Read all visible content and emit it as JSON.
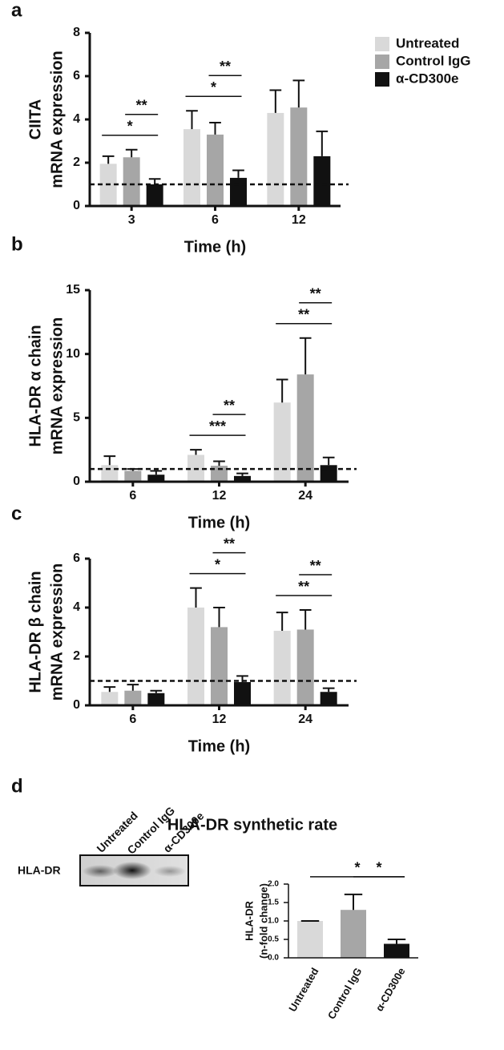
{
  "chart_data": [
    {
      "type": "bar",
      "panel": "a",
      "y_label": [
        "CIITA",
        "mRNA expression"
      ],
      "x_label": "Time (h)",
      "categories": [
        "3",
        "6",
        "12"
      ],
      "series": [
        {
          "name": "Untreated",
          "color": "#d9d9d9",
          "values": [
            1.95,
            3.55,
            4.3
          ],
          "errors": [
            0.35,
            0.85,
            1.05
          ]
        },
        {
          "name": "Control IgG",
          "color": "#a6a6a6",
          "values": [
            2.25,
            3.3,
            4.55
          ],
          "errors": [
            0.35,
            0.55,
            1.25
          ]
        },
        {
          "name": "α-CD300e",
          "color": "#111111",
          "values": [
            1.0,
            1.3,
            2.3
          ],
          "errors": [
            0.25,
            0.35,
            1.15
          ]
        }
      ],
      "ylim": [
        0,
        8
      ],
      "yticks": [
        0,
        2,
        4,
        6,
        8
      ],
      "reference_line": 1,
      "legend": "upper right",
      "annotations": [
        {
          "text": "*",
          "category": 0,
          "between": [
            0,
            2
          ]
        },
        {
          "text": "**",
          "category": 0,
          "between": [
            1,
            2
          ]
        },
        {
          "text": "*",
          "category": 1,
          "between": [
            0,
            2
          ]
        },
        {
          "text": "**",
          "category": 1,
          "between": [
            1,
            2
          ]
        }
      ]
    },
    {
      "type": "bar",
      "panel": "b",
      "y_label": [
        "HLA-DR α chain",
        "mRNA expression"
      ],
      "x_label": "Time (h)",
      "categories": [
        "6",
        "12",
        "24"
      ],
      "series": [
        {
          "name": "Untreated",
          "color": "#d9d9d9",
          "values": [
            1.3,
            2.1,
            6.2
          ],
          "errors": [
            0.7,
            0.4,
            1.8
          ]
        },
        {
          "name": "Control IgG",
          "color": "#a6a6a6",
          "values": [
            0.85,
            1.25,
            8.4
          ],
          "errors": [
            0.15,
            0.35,
            2.85
          ]
        },
        {
          "name": "α-CD300e",
          "color": "#111111",
          "values": [
            0.55,
            0.45,
            1.3
          ],
          "errors": [
            0.3,
            0.2,
            0.6
          ]
        }
      ],
      "ylim": [
        0,
        15
      ],
      "yticks": [
        0,
        5,
        10,
        15
      ],
      "reference_line": 1,
      "annotations": [
        {
          "text": "***",
          "category": 1,
          "between": [
            0,
            2
          ]
        },
        {
          "text": "**",
          "category": 1,
          "between": [
            1,
            2
          ]
        },
        {
          "text": "**",
          "category": 2,
          "between": [
            0,
            2
          ]
        },
        {
          "text": "**",
          "category": 2,
          "between": [
            1,
            2
          ]
        }
      ]
    },
    {
      "type": "bar",
      "panel": "c",
      "y_label": [
        "HLA-DR β chain",
        "mRNA expression"
      ],
      "x_label": "Time (h)",
      "categories": [
        "6",
        "12",
        "24"
      ],
      "series": [
        {
          "name": "Untreated",
          "color": "#d9d9d9",
          "values": [
            0.55,
            4.0,
            3.05
          ],
          "errors": [
            0.2,
            0.8,
            0.75
          ]
        },
        {
          "name": "Control IgG",
          "color": "#a6a6a6",
          "values": [
            0.6,
            3.2,
            3.1
          ],
          "errors": [
            0.25,
            0.8,
            0.8
          ]
        },
        {
          "name": "α-CD300e",
          "color": "#111111",
          "values": [
            0.5,
            0.95,
            0.55
          ],
          "errors": [
            0.1,
            0.25,
            0.15
          ]
        }
      ],
      "ylim": [
        0,
        6
      ],
      "yticks": [
        0,
        2,
        4,
        6
      ],
      "reference_line": 1,
      "annotations": [
        {
          "text": "*",
          "category": 1,
          "between": [
            0,
            2
          ]
        },
        {
          "text": "**",
          "category": 1,
          "between": [
            1,
            2
          ]
        },
        {
          "text": "**",
          "category": 2,
          "between": [
            0,
            2
          ]
        },
        {
          "text": "**",
          "category": 2,
          "between": [
            1,
            2
          ]
        }
      ]
    },
    {
      "type": "bar",
      "panel": "d",
      "title": "HLA-DR  synthetic rate",
      "y_label": [
        "HLA-DR",
        "(n-fold change)"
      ],
      "categories": [
        "Untreated",
        "Control IgG",
        "α-CD300e"
      ],
      "values": [
        1.0,
        1.3,
        0.38
      ],
      "errors": [
        0,
        0.42,
        0.12
      ],
      "colors": [
        "#d9d9d9",
        "#a6a6a6",
        "#111111"
      ],
      "ylim": [
        0,
        2
      ],
      "yticks": [
        {
          "value": 0,
          "label": "0.0"
        },
        {
          "value": 0.5,
          "label": "0.5"
        },
        {
          "value": 1,
          "label": "1.0"
        },
        {
          "value": 1.5,
          "label": "1.5"
        },
        {
          "value": 2,
          "label": "2.0"
        }
      ],
      "annotations": [
        {
          "text": "*",
          "category": 0,
          "between": [
            0,
            2
          ]
        },
        {
          "text": "*",
          "category": 1,
          "between": [
            1,
            2
          ]
        }
      ]
    }
  ],
  "blot": {
    "lanes": [
      "Untreated",
      "Control IgG",
      "α-CD300e"
    ],
    "band": "HLA-DR"
  }
}
